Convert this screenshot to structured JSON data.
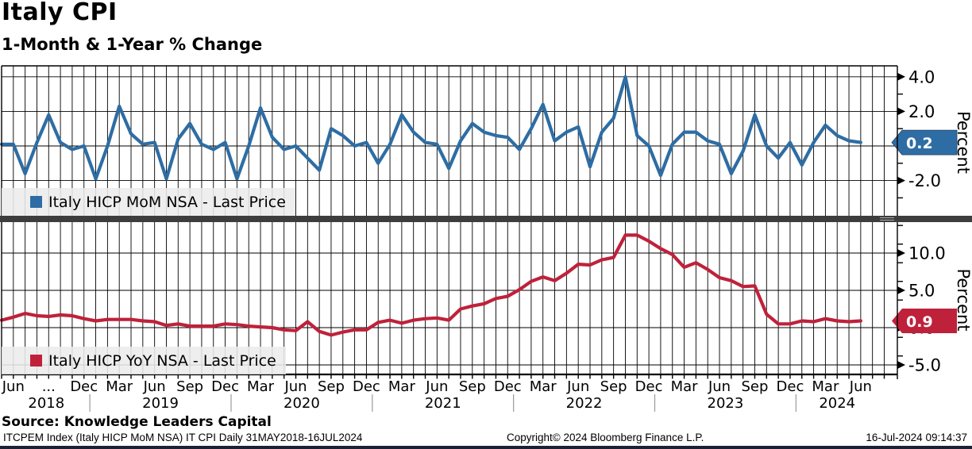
{
  "header": {
    "title": "Italy CPI",
    "subtitle": "1-Month & 1-Year % Change"
  },
  "chart_data": [
    {
      "type": "line",
      "panel": "top",
      "name": "Italy HICP MoM NSA - Last Price",
      "color": "#2e6da4",
      "ylabel": "Percent",
      "last_price": "0.2",
      "last_value": 0.2,
      "yticks": [
        4.0,
        2.0,
        0.0,
        -2.0
      ],
      "gridlines": [
        4.0,
        2.0,
        0.0,
        -2.0
      ],
      "minor_tick_step": 1.0,
      "ylim": [
        -4.0,
        4.6
      ],
      "x_start": "2018-05",
      "x_end": "2024-06",
      "freq": "monthly",
      "values": [
        0.1,
        0.1,
        -1.6,
        0.2,
        1.8,
        0.2,
        -0.2,
        0.0,
        -1.9,
        0.0,
        2.3,
        0.7,
        0.1,
        0.2,
        -1.9,
        0.4,
        1.3,
        0.1,
        -0.2,
        0.2,
        -1.9,
        0.0,
        2.2,
        0.5,
        -0.2,
        0.0,
        -0.7,
        -1.4,
        1.0,
        0.6,
        0.0,
        0.2,
        -1.0,
        0.1,
        1.8,
        0.8,
        0.2,
        0.1,
        -1.3,
        0.3,
        1.3,
        0.8,
        0.6,
        0.5,
        -0.2,
        1.0,
        2.4,
        0.3,
        0.8,
        1.1,
        -1.2,
        0.8,
        1.6,
        4.0,
        0.6,
        0.0,
        -1.7,
        0.1,
        0.8,
        0.8,
        0.3,
        0.1,
        -1.6,
        -0.3,
        1.8,
        0.0,
        -0.7,
        0.2,
        -1.1,
        0.2,
        1.2,
        0.6,
        0.3,
        0.2
      ]
    },
    {
      "type": "line",
      "panel": "bottom",
      "name": "Italy HICP YoY NSA - Last Price",
      "color": "#bf213b",
      "ylabel": "Percent",
      "last_price": "0.9",
      "last_value": 0.9,
      "yticks": [
        10.0,
        5.0,
        0.0,
        -5.0
      ],
      "gridlines": [
        10.0,
        5.0,
        0.0,
        -5.0
      ],
      "minor_tick_step": 2.5,
      "ylim": [
        -6.3,
        14.1
      ],
      "x_start": "2018-05",
      "x_end": "2024-06",
      "freq": "monthly",
      "values": [
        1.0,
        1.4,
        1.9,
        1.6,
        1.5,
        1.7,
        1.6,
        1.2,
        0.9,
        1.1,
        1.1,
        1.1,
        0.9,
        0.8,
        0.3,
        0.5,
        0.2,
        0.2,
        0.2,
        0.5,
        0.4,
        0.2,
        0.1,
        0.0,
        -0.3,
        -0.4,
        0.8,
        -0.5,
        -1.0,
        -0.6,
        -0.3,
        -0.3,
        0.7,
        1.0,
        0.6,
        1.0,
        1.2,
        1.3,
        1.0,
        2.5,
        2.9,
        3.2,
        3.9,
        4.2,
        5.1,
        6.2,
        6.8,
        6.3,
        7.3,
        8.5,
        8.4,
        9.1,
        9.4,
        12.4,
        12.4,
        11.6,
        10.6,
        9.8,
        8.1,
        8.7,
        7.8,
        6.7,
        6.3,
        5.5,
        5.6,
        1.8,
        0.5,
        0.5,
        0.9,
        0.8,
        1.2,
        0.9,
        0.8,
        0.9
      ]
    }
  ],
  "xaxis": {
    "month_labels": [
      {
        "m": 1,
        "label": "Jun"
      },
      {
        "m": 4,
        "label": "..."
      },
      {
        "m": 7,
        "label": "Dec"
      },
      {
        "m": 10,
        "label": "Mar"
      },
      {
        "m": 13,
        "label": "Jun"
      },
      {
        "m": 16,
        "label": "Sep"
      },
      {
        "m": 19,
        "label": "Dec"
      },
      {
        "m": 22,
        "label": "Mar"
      },
      {
        "m": 25,
        "label": "Jun"
      },
      {
        "m": 28,
        "label": "Sep"
      },
      {
        "m": 31,
        "label": "Dec"
      },
      {
        "m": 34,
        "label": "Mar"
      },
      {
        "m": 37,
        "label": "Jun"
      },
      {
        "m": 40,
        "label": "Sep"
      },
      {
        "m": 43,
        "label": "Dec"
      },
      {
        "m": 46,
        "label": "Mar"
      },
      {
        "m": 49,
        "label": "Jun"
      },
      {
        "m": 52,
        "label": "Sep"
      },
      {
        "m": 55,
        "label": "Dec"
      },
      {
        "m": 58,
        "label": "Mar"
      },
      {
        "m": 61,
        "label": "Jun"
      },
      {
        "m": 64,
        "label": "Sep"
      },
      {
        "m": 67,
        "label": "Dec"
      },
      {
        "m": 70,
        "label": "Mar"
      },
      {
        "m": 73,
        "label": "Jun"
      }
    ],
    "year_labels": [
      {
        "m": 3.8,
        "label": "2018"
      },
      {
        "m": 13.5,
        "label": "2019"
      },
      {
        "m": 25.5,
        "label": "2020"
      },
      {
        "m": 37.5,
        "label": "2021"
      },
      {
        "m": 49.5,
        "label": "2022"
      },
      {
        "m": 61.5,
        "label": "2023"
      },
      {
        "m": 71.0,
        "label": "2024"
      }
    ],
    "year_separators_m": [
      7.5,
      19.5,
      31.5,
      43.5,
      55.5,
      67.5
    ]
  },
  "footer": {
    "source": "Source: Knowledge Leaders Capital",
    "ticker_info": "ITCPEM Index (Italy HICP MoM NSA) IT CPI  Daily 31MAY2018-16JUL2024",
    "copyright": "Copyright© 2024 Bloomberg Finance L.P.",
    "timestamp": "16-Jul-2024 09:14:37"
  },
  "style": {
    "divider_color": "#3d3d3d",
    "legend_bg": "#ececec",
    "grid_color": "#000000"
  }
}
